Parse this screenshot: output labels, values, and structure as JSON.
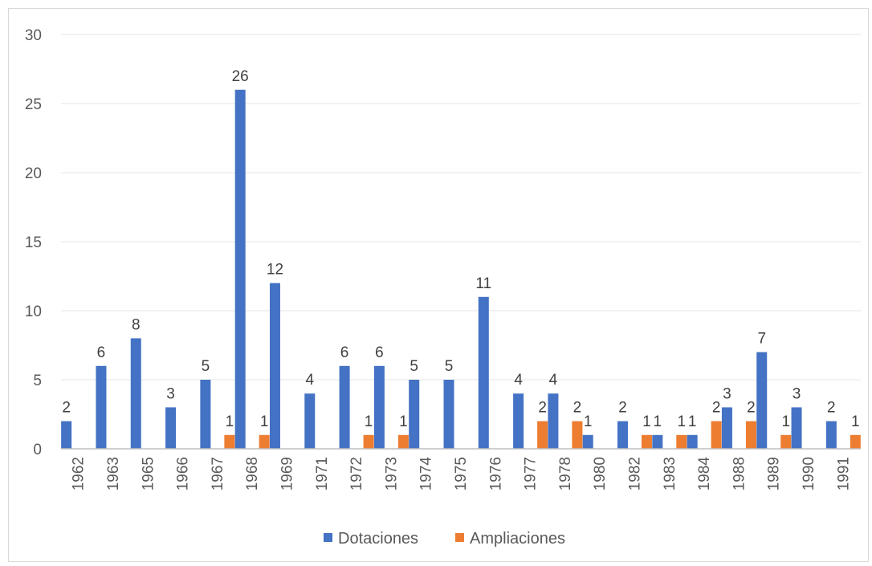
{
  "chart_data": {
    "type": "bar",
    "title": "",
    "xlabel": "",
    "ylabel": "",
    "ylim": [
      0,
      30
    ],
    "yticks": [
      "0",
      "5",
      "10",
      "15",
      "20",
      "25",
      "30"
    ],
    "grid": true,
    "legend_position": "bottom",
    "categories": [
      "1962",
      "1963",
      "1965",
      "1966",
      "1967",
      "1968",
      "1969",
      "1971",
      "1972",
      "1973",
      "1974",
      "1975",
      "1976",
      "1977",
      "1978",
      "1980",
      "1982",
      "1983",
      "1984",
      "1988",
      "1989",
      "1990",
      "1991"
    ],
    "series": [
      {
        "name": "Dotaciones",
        "color": "#4472c4",
        "values": [
          2,
          6,
          8,
          3,
          5,
          26,
          12,
          4,
          6,
          6,
          5,
          5,
          11,
          4,
          4,
          1,
          2,
          1,
          1,
          3,
          7,
          3,
          2
        ]
      },
      {
        "name": "Ampliaciones",
        "color": "#ed7d31",
        "values": [
          null,
          null,
          null,
          null,
          1,
          1,
          null,
          null,
          1,
          1,
          null,
          null,
          null,
          2,
          2,
          null,
          1,
          1,
          2,
          2,
          1,
          null,
          1
        ]
      }
    ]
  }
}
